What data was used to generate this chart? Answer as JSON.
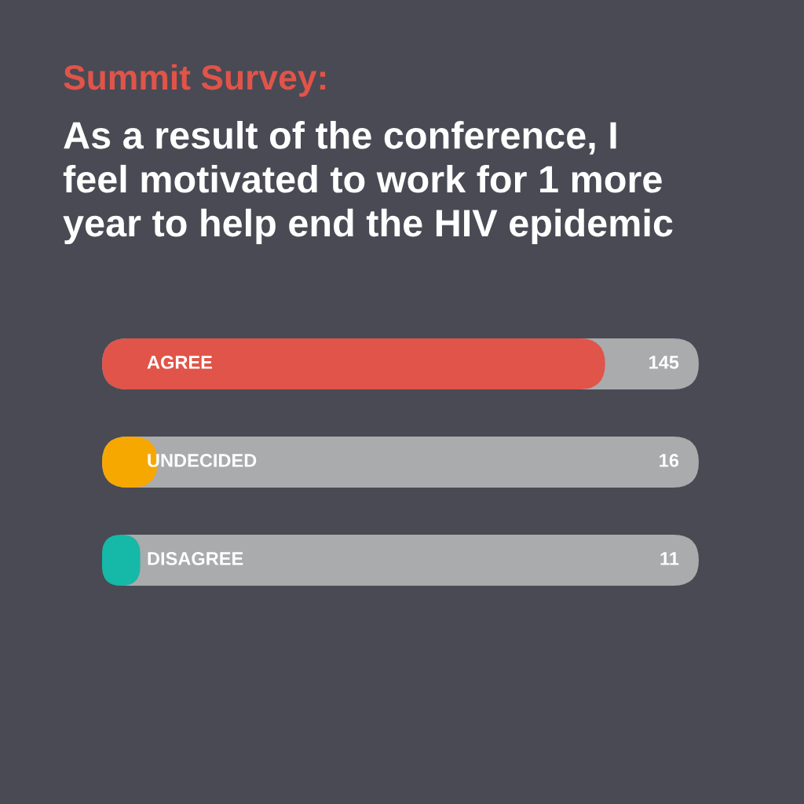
{
  "chart_data": {
    "type": "bar",
    "orientation": "horizontal",
    "title": "Summit Survey:",
    "subtitle": "As a result of the conference, I\nfeel motivated to work for 1 more\nyear to help end the HIV epidemic",
    "categories": [
      "AGREE",
      "UNDECIDED",
      "DISAGREE"
    ],
    "values": [
      145,
      16,
      11
    ],
    "colors": [
      "#e05449",
      "#f7a800",
      "#16b8a8"
    ],
    "xlim": [
      0,
      172
    ],
    "data_labels": true,
    "tick_labels": "y"
  }
}
